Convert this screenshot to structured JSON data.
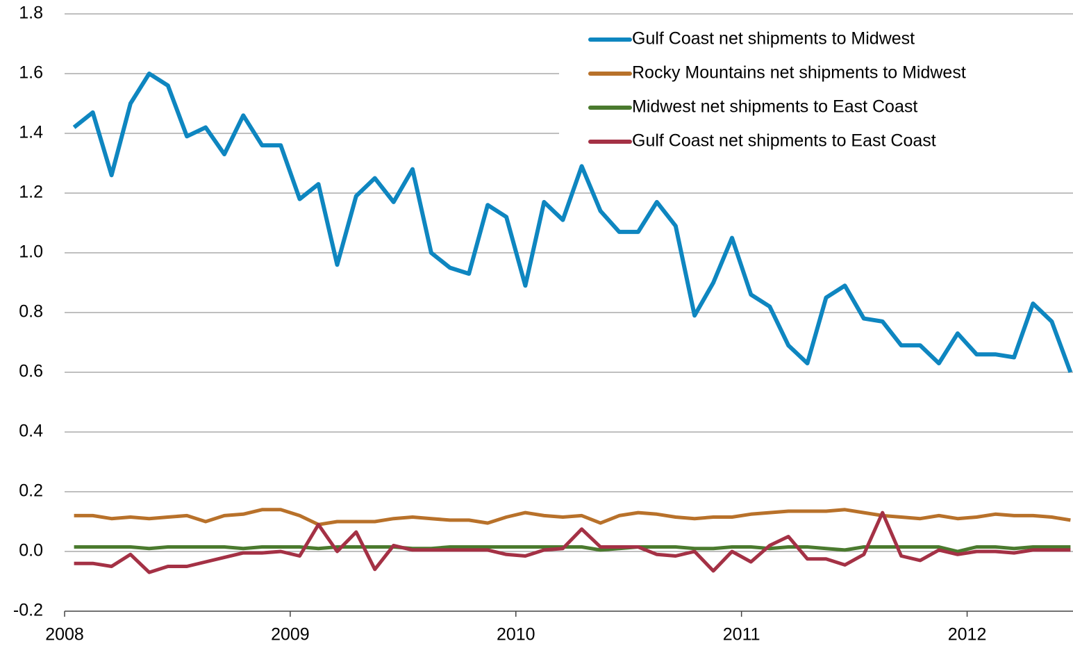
{
  "chart_data": {
    "type": "line",
    "x": [
      2008.042,
      2008.125,
      2008.208,
      2008.292,
      2008.375,
      2008.458,
      2008.542,
      2008.625,
      2008.708,
      2008.792,
      2008.875,
      2008.958,
      2009.042,
      2009.125,
      2009.208,
      2009.292,
      2009.375,
      2009.458,
      2009.542,
      2009.625,
      2009.708,
      2009.792,
      2009.875,
      2009.958,
      2010.042,
      2010.125,
      2010.208,
      2010.292,
      2010.375,
      2010.458,
      2010.542,
      2010.625,
      2010.708,
      2010.792,
      2010.875,
      2010.958,
      2011.042,
      2011.125,
      2011.208,
      2011.292,
      2011.375,
      2011.458,
      2011.542,
      2011.625,
      2011.708,
      2011.792,
      2011.875,
      2011.958,
      2012.042,
      2012.125,
      2012.208,
      2012.292,
      2012.375,
      2012.458
    ],
    "xlim": [
      2008,
      2012.46
    ],
    "xticks": [
      2008,
      2009,
      2010,
      2011,
      2012
    ],
    "ylim": [
      -0.2,
      1.8
    ],
    "yticks": [
      -0.2,
      {
        "value": 0,
        "label": "0.0"
      },
      0.2,
      0.4,
      0.6,
      0.8,
      {
        "value": 1,
        "label": "1.0"
      },
      1.2,
      1.4,
      1.6,
      1.8
    ],
    "grid": true,
    "legend": "upper right",
    "series": [
      {
        "name": "Gulf Coast net shipments to Midwest",
        "color": "#0e86c0",
        "values": [
          1.42,
          1.47,
          1.26,
          1.5,
          1.6,
          1.56,
          1.39,
          1.42,
          1.33,
          1.46,
          1.36,
          1.36,
          1.18,
          1.23,
          0.96,
          1.19,
          1.25,
          1.17,
          1.28,
          1.0,
          0.95,
          0.93,
          1.16,
          1.12,
          0.89,
          1.17,
          1.11,
          1.29,
          1.14,
          1.07,
          1.07,
          1.17,
          1.09,
          0.79,
          0.9,
          1.05,
          0.86,
          0.82,
          0.69,
          0.63,
          0.85,
          0.89,
          0.78,
          0.77,
          0.69,
          0.69,
          0.63,
          0.73,
          0.66,
          0.66,
          0.65,
          0.83,
          0.77,
          0.6
        ]
      },
      {
        "name": "Rocky Mountains net shipments to Midwest",
        "color": "#b8712a",
        "values": [
          0.12,
          0.12,
          0.11,
          0.115,
          0.11,
          0.115,
          0.12,
          0.1,
          0.12,
          0.125,
          0.14,
          0.14,
          0.12,
          0.09,
          0.1,
          0.1,
          0.1,
          0.11,
          0.115,
          0.11,
          0.105,
          0.105,
          0.095,
          0.115,
          0.13,
          0.12,
          0.115,
          0.12,
          0.095,
          0.12,
          0.13,
          0.125,
          0.115,
          0.11,
          0.115,
          0.115,
          0.125,
          0.13,
          0.135,
          0.135,
          0.135,
          0.14,
          0.13,
          0.12,
          0.115,
          0.11,
          0.12,
          0.11,
          0.115,
          0.125,
          0.12,
          0.12,
          0.115,
          0.105
        ]
      },
      {
        "name": "Midwest net shipments to East Coast",
        "color": "#4a7a2e",
        "values": [
          0.015,
          0.015,
          0.015,
          0.015,
          0.01,
          0.015,
          0.015,
          0.015,
          0.015,
          0.01,
          0.015,
          0.015,
          0.015,
          0.01,
          0.015,
          0.015,
          0.015,
          0.015,
          0.01,
          0.01,
          0.015,
          0.015,
          0.015,
          0.015,
          0.015,
          0.015,
          0.015,
          0.015,
          0.005,
          0.01,
          0.015,
          0.015,
          0.015,
          0.01,
          0.01,
          0.015,
          0.015,
          0.01,
          0.015,
          0.015,
          0.01,
          0.005,
          0.015,
          0.015,
          0.015,
          0.015,
          0.015,
          0.0,
          0.015,
          0.015,
          0.01,
          0.015,
          0.015,
          0.015
        ]
      },
      {
        "name": "Gulf Coast net shipments to East Coast",
        "color": "#a43145",
        "values": [
          -0.04,
          -0.04,
          -0.05,
          -0.01,
          -0.07,
          -0.05,
          -0.05,
          -0.035,
          -0.02,
          -0.005,
          -0.005,
          0,
          -0.015,
          0.09,
          0,
          0.065,
          -0.06,
          0.02,
          0.005,
          0.005,
          0.005,
          0.005,
          0.005,
          -0.01,
          -0.015,
          0.005,
          0.01,
          0.075,
          0.015,
          0.015,
          0.015,
          -0.01,
          -0.015,
          0,
          -0.065,
          0,
          -0.035,
          0.02,
          0.05,
          -0.025,
          -0.025,
          -0.045,
          -0.01,
          0.13,
          -0.015,
          -0.03,
          0.005,
          -0.01,
          0,
          0,
          -0.005,
          0.005,
          0.005,
          0.005
        ]
      }
    ]
  }
}
